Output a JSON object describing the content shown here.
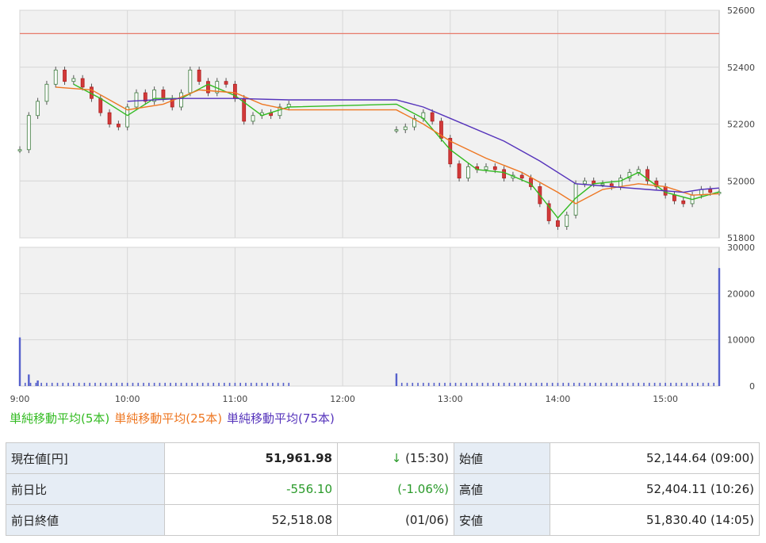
{
  "chart_data": [
    {
      "type": "line",
      "title": "",
      "xlabel": "",
      "ylabel": "",
      "x_ticks": [
        "9:00",
        "10:00",
        "11:00",
        "12:00",
        "13:00",
        "14:00",
        "15:00"
      ],
      "y_ticks": [
        51800,
        52000,
        52200,
        52400,
        52600
      ],
      "ylim": [
        51800,
        52600
      ],
      "grid": true,
      "reference_line": {
        "value": 52518.08
      },
      "price_points": [
        {
          "t": "9:00",
          "v": 52110
        },
        {
          "t": "9:05",
          "v": 52230
        },
        {
          "t": "9:10",
          "v": 52280
        },
        {
          "t": "9:15",
          "v": 52340
        },
        {
          "t": "9:20",
          "v": 52390
        },
        {
          "t": "9:25",
          "v": 52350
        },
        {
          "t": "9:30",
          "v": 52360
        },
        {
          "t": "9:35",
          "v": 52330
        },
        {
          "t": "9:40",
          "v": 52290
        },
        {
          "t": "9:45",
          "v": 52240
        },
        {
          "t": "9:50",
          "v": 52200
        },
        {
          "t": "9:55",
          "v": 52190
        },
        {
          "t": "10:00",
          "v": 52260
        },
        {
          "t": "10:05",
          "v": 52310
        },
        {
          "t": "10:10",
          "v": 52280
        },
        {
          "t": "10:15",
          "v": 52320
        },
        {
          "t": "10:20",
          "v": 52290
        },
        {
          "t": "10:25",
          "v": 52260
        },
        {
          "t": "10:30",
          "v": 52310
        },
        {
          "t": "10:35",
          "v": 52390
        },
        {
          "t": "10:40",
          "v": 52350
        },
        {
          "t": "10:45",
          "v": 52310
        },
        {
          "t": "10:50",
          "v": 52350
        },
        {
          "t": "10:55",
          "v": 52340
        },
        {
          "t": "11:00",
          "v": 52290
        },
        {
          "t": "11:05",
          "v": 52210
        },
        {
          "t": "11:10",
          "v": 52230
        },
        {
          "t": "11:15",
          "v": 52240
        },
        {
          "t": "11:20",
          "v": 52230
        },
        {
          "t": "11:25",
          "v": 52260
        },
        {
          "t": "11:30",
          "v": 52270
        },
        {
          "t": "12:30",
          "v": 52180
        },
        {
          "t": "12:35",
          "v": 52190
        },
        {
          "t": "12:40",
          "v": 52220
        },
        {
          "t": "12:45",
          "v": 52240
        },
        {
          "t": "12:50",
          "v": 52210
        },
        {
          "t": "12:55",
          "v": 52150
        },
        {
          "t": "13:00",
          "v": 52060
        },
        {
          "t": "13:05",
          "v": 52010
        },
        {
          "t": "13:10",
          "v": 52050
        },
        {
          "t": "13:15",
          "v": 52040
        },
        {
          "t": "13:20",
          "v": 52050
        },
        {
          "t": "13:25",
          "v": 52040
        },
        {
          "t": "13:30",
          "v": 52010
        },
        {
          "t": "13:35",
          "v": 52020
        },
        {
          "t": "13:40",
          "v": 52010
        },
        {
          "t": "13:45",
          "v": 51980
        },
        {
          "t": "13:50",
          "v": 51920
        },
        {
          "t": "13:55",
          "v": 51860
        },
        {
          "t": "14:00",
          "v": 51840
        },
        {
          "t": "14:05",
          "v": 51880
        },
        {
          "t": "14:10",
          "v": 51990
        },
        {
          "t": "14:15",
          "v": 52000
        },
        {
          "t": "14:20",
          "v": 51990
        },
        {
          "t": "14:25",
          "v": 51990
        },
        {
          "t": "14:30",
          "v": 51980
        },
        {
          "t": "14:35",
          "v": 52010
        },
        {
          "t": "14:40",
          "v": 52030
        },
        {
          "t": "14:45",
          "v": 52040
        },
        {
          "t": "14:50",
          "v": 52000
        },
        {
          "t": "14:55",
          "v": 51980
        },
        {
          "t": "15:00",
          "v": 51950
        },
        {
          "t": "15:05",
          "v": 51930
        },
        {
          "t": "15:10",
          "v": 51920
        },
        {
          "t": "15:15",
          "v": 51950
        },
        {
          "t": "15:20",
          "v": 51970
        },
        {
          "t": "15:25",
          "v": 51960
        },
        {
          "t": "15:30",
          "v": 51960
        }
      ],
      "series": [
        {
          "name": "単純移動平均(5本)",
          "color": "#33bb22",
          "values": [
            {
              "t": "9:30",
              "v": 52340
            },
            {
              "t": "9:45",
              "v": 52290
            },
            {
              "t": "10:00",
              "v": 52230
            },
            {
              "t": "10:15",
              "v": 52290
            },
            {
              "t": "10:30",
              "v": 52290
            },
            {
              "t": "10:45",
              "v": 52340
            },
            {
              "t": "11:00",
              "v": 52300
            },
            {
              "t": "11:15",
              "v": 52230
            },
            {
              "t": "11:30",
              "v": 52260
            },
            {
              "t": "12:30",
              "v": 52270
            },
            {
              "t": "12:45",
              "v": 52220
            },
            {
              "t": "13:00",
              "v": 52110
            },
            {
              "t": "13:15",
              "v": 52040
            },
            {
              "t": "13:30",
              "v": 52030
            },
            {
              "t": "13:45",
              "v": 51990
            },
            {
              "t": "14:00",
              "v": 51870
            },
            {
              "t": "14:10",
              "v": 51940
            },
            {
              "t": "14:20",
              "v": 51990
            },
            {
              "t": "14:35",
              "v": 52000
            },
            {
              "t": "14:45",
              "v": 52030
            },
            {
              "t": "15:00",
              "v": 51960
            },
            {
              "t": "15:15",
              "v": 51935
            },
            {
              "t": "15:30",
              "v": 51962
            }
          ]
        },
        {
          "name": "単純移動平均(25本)",
          "color": "#ee7722",
          "values": [
            {
              "t": "9:20",
              "v": 52330
            },
            {
              "t": "9:40",
              "v": 52320
            },
            {
              "t": "10:00",
              "v": 52250
            },
            {
              "t": "10:20",
              "v": 52270
            },
            {
              "t": "10:40",
              "v": 52320
            },
            {
              "t": "11:00",
              "v": 52310
            },
            {
              "t": "11:15",
              "v": 52270
            },
            {
              "t": "11:30",
              "v": 52250
            },
            {
              "t": "12:30",
              "v": 52250
            },
            {
              "t": "12:45",
              "v": 52200
            },
            {
              "t": "13:00",
              "v": 52140
            },
            {
              "t": "13:20",
              "v": 52080
            },
            {
              "t": "13:40",
              "v": 52030
            },
            {
              "t": "14:00",
              "v": 51960
            },
            {
              "t": "14:10",
              "v": 51920
            },
            {
              "t": "14:25",
              "v": 51970
            },
            {
              "t": "14:45",
              "v": 51990
            },
            {
              "t": "15:00",
              "v": 51980
            },
            {
              "t": "15:15",
              "v": 51950
            },
            {
              "t": "15:30",
              "v": 51955
            }
          ]
        },
        {
          "name": "単純移動平均(75本)",
          "color": "#5533bb",
          "values": [
            {
              "t": "10:00",
              "v": 52280
            },
            {
              "t": "10:30",
              "v": 52290
            },
            {
              "t": "11:00",
              "v": 52290
            },
            {
              "t": "11:30",
              "v": 52285
            },
            {
              "t": "12:30",
              "v": 52285
            },
            {
              "t": "12:45",
              "v": 52260
            },
            {
              "t": "13:00",
              "v": 52220
            },
            {
              "t": "13:30",
              "v": 52140
            },
            {
              "t": "13:50",
              "v": 52070
            },
            {
              "t": "14:10",
              "v": 51990
            },
            {
              "t": "14:30",
              "v": 51980
            },
            {
              "t": "14:50",
              "v": 51970
            },
            {
              "t": "15:10",
              "v": 51960
            },
            {
              "t": "15:20",
              "v": 51970
            },
            {
              "t": "15:30",
              "v": 51975
            }
          ]
        }
      ]
    },
    {
      "type": "bar",
      "title": "",
      "y_ticks": [
        0,
        10000,
        20000,
        30000
      ],
      "ylim": [
        0,
        30000
      ],
      "grid": true,
      "color": "#5560cc",
      "bars": [
        {
          "t": "9:00",
          "v": 10500
        },
        {
          "t": "9:05",
          "v": 2500
        },
        {
          "t": "9:10",
          "v": 1200
        },
        {
          "t": "12:30",
          "v": 2700
        },
        {
          "t": "15:30",
          "v": 25500
        }
      ],
      "baseline_volume": 700
    }
  ],
  "legend": {
    "ma5": "単純移動平均(5本)",
    "ma25": "単純移動平均(25本)",
    "ma75": "単純移動平均(75本)",
    "colors": {
      "ma5": "#33bb22",
      "ma25": "#ee7722",
      "ma75": "#5533bb"
    }
  },
  "quote": {
    "current_label": "現在値[円]",
    "current_value": "51,961.98",
    "current_arrow": "↓",
    "current_time": "(15:30)",
    "change_label": "前日比",
    "change_value": "-556.10",
    "change_pct": "(-1.06%)",
    "prev_close_label": "前日終値",
    "prev_close_value": "52,518.08",
    "prev_close_date": "(01/06)",
    "open_label": "始値",
    "open_value": "52,144.64 (09:00)",
    "high_label": "高値",
    "high_value": "52,404.11 (10:26)",
    "low_label": "安値",
    "low_value": "51,830.40 (14:05)"
  }
}
